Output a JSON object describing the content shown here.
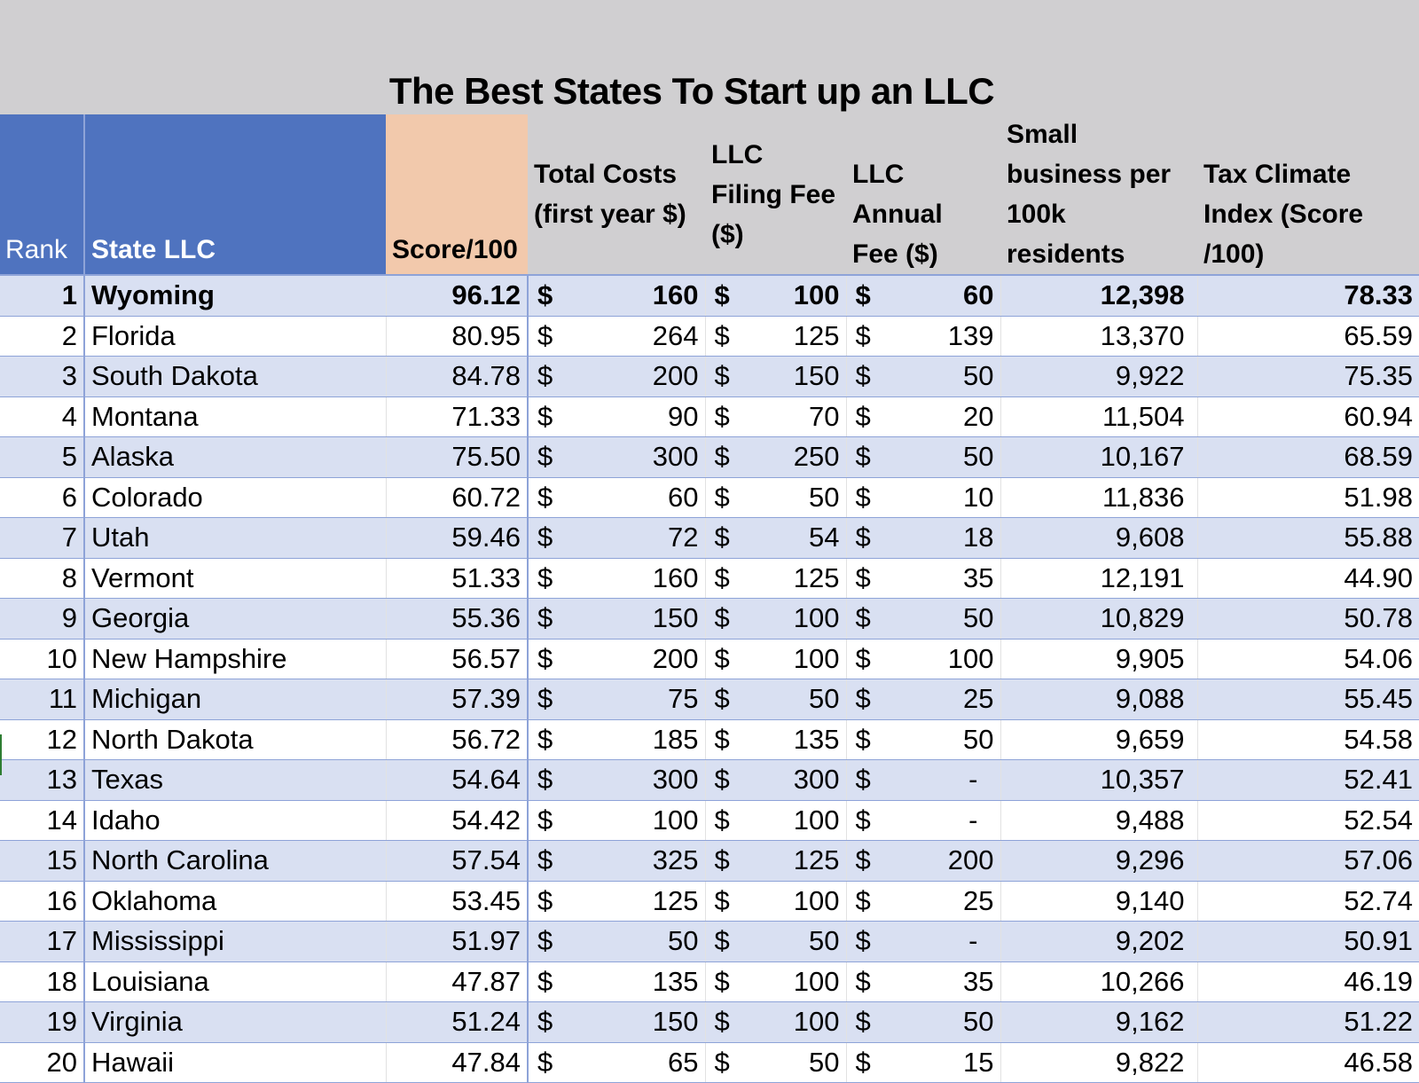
{
  "title": "The Best States To Start up an LLC",
  "headers": {
    "rank": "Rank",
    "state": "State LLC",
    "score": "Score/100",
    "total_costs": "Total Costs (first year $)",
    "filing_fee": "LLC Filing Fee ($)",
    "annual_fee": "LLC Annual Fee ($)",
    "small_business": "Small business per 100k residents",
    "tax_climate": "Tax Climate Index (Score /100)"
  },
  "currency_symbol": "$",
  "rows": [
    {
      "rank": "1",
      "state": "Wyoming",
      "score": "96.12",
      "total": "160",
      "filing": "100",
      "annual": "60",
      "sb": "12,398",
      "tax": "78.33"
    },
    {
      "rank": "2",
      "state": "Florida",
      "score": "80.95",
      "total": "264",
      "filing": "125",
      "annual": "139",
      "sb": "13,370",
      "tax": "65.59"
    },
    {
      "rank": "3",
      "state": "South Dakota",
      "score": "84.78",
      "total": "200",
      "filing": "150",
      "annual": "50",
      "sb": "9,922",
      "tax": "75.35"
    },
    {
      "rank": "4",
      "state": "Montana",
      "score": "71.33",
      "total": "90",
      "filing": "70",
      "annual": "20",
      "sb": "11,504",
      "tax": "60.94"
    },
    {
      "rank": "5",
      "state": "Alaska",
      "score": "75.50",
      "total": "300",
      "filing": "250",
      "annual": "50",
      "sb": "10,167",
      "tax": "68.59"
    },
    {
      "rank": "6",
      "state": "Colorado",
      "score": "60.72",
      "total": "60",
      "filing": "50",
      "annual": "10",
      "sb": "11,836",
      "tax": "51.98"
    },
    {
      "rank": "7",
      "state": "Utah",
      "score": "59.46",
      "total": "72",
      "filing": "54",
      "annual": "18",
      "sb": "9,608",
      "tax": "55.88"
    },
    {
      "rank": "8",
      "state": "Vermont",
      "score": "51.33",
      "total": "160",
      "filing": "125",
      "annual": "35",
      "sb": "12,191",
      "tax": "44.90"
    },
    {
      "rank": "9",
      "state": "Georgia",
      "score": "55.36",
      "total": "150",
      "filing": "100",
      "annual": "50",
      "sb": "10,829",
      "tax": "50.78"
    },
    {
      "rank": "10",
      "state": "New Hampshire",
      "score": "56.57",
      "total": "200",
      "filing": "100",
      "annual": "100",
      "sb": "9,905",
      "tax": "54.06"
    },
    {
      "rank": "11",
      "state": "Michigan",
      "score": "57.39",
      "total": "75",
      "filing": "50",
      "annual": "25",
      "sb": "9,088",
      "tax": "55.45"
    },
    {
      "rank": "12",
      "state": "North Dakota",
      "score": "56.72",
      "total": "185",
      "filing": "135",
      "annual": "50",
      "sb": "9,659",
      "tax": "54.58"
    },
    {
      "rank": "13",
      "state": "Texas",
      "score": "54.64",
      "total": "300",
      "filing": "300",
      "annual": "-",
      "sb": "10,357",
      "tax": "52.41"
    },
    {
      "rank": "14",
      "state": "Idaho",
      "score": "54.42",
      "total": "100",
      "filing": "100",
      "annual": "-",
      "sb": "9,488",
      "tax": "52.54"
    },
    {
      "rank": "15",
      "state": "North Carolina",
      "score": "57.54",
      "total": "325",
      "filing": "125",
      "annual": "200",
      "sb": "9,296",
      "tax": "57.06"
    },
    {
      "rank": "16",
      "state": "Oklahoma",
      "score": "53.45",
      "total": "125",
      "filing": "100",
      "annual": "25",
      "sb": "9,140",
      "tax": "52.74"
    },
    {
      "rank": "17",
      "state": "Mississippi",
      "score": "51.97",
      "total": "50",
      "filing": "50",
      "annual": "-",
      "sb": "9,202",
      "tax": "50.91"
    },
    {
      "rank": "18",
      "state": "Louisiana",
      "score": "47.87",
      "total": "135",
      "filing": "100",
      "annual": "35",
      "sb": "10,266",
      "tax": "46.19"
    },
    {
      "rank": "19",
      "state": "Virginia",
      "score": "51.24",
      "total": "150",
      "filing": "100",
      "annual": "50",
      "sb": "9,162",
      "tax": "51.22"
    },
    {
      "rank": "20",
      "state": "Hawaii",
      "score": "47.84",
      "total": "65",
      "filing": "50",
      "annual": "15",
      "sb": "9,822",
      "tax": "46.58"
    }
  ],
  "colors": {
    "header_blue": "#4f73bf",
    "header_score": "#f2c9ac",
    "band_light_blue": "#d9e0f2",
    "grid_line": "#8ea3d8",
    "background_gray": "#d0cfd1"
  }
}
